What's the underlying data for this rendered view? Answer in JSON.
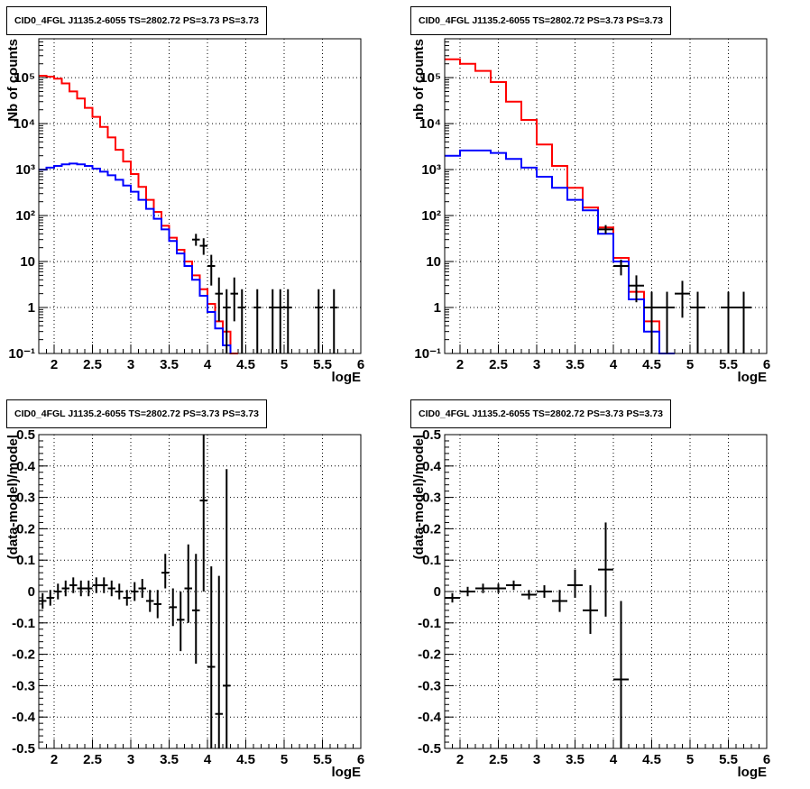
{
  "chart_data": [
    {
      "type": "line",
      "panel": "top-left",
      "title": "CID0_4FGL J1135.2-6055 TS=2802.72 PS=3.73 PS=3.73",
      "xlabel": "logE",
      "ylabel": "Nb of counts",
      "xlim": [
        1.8,
        6.0
      ],
      "ylim": [
        0.1,
        700000
      ],
      "y_scale": "log",
      "grid": true,
      "x_ticks": [
        "2",
        "2.5",
        "3",
        "3.5",
        "4",
        "4.5",
        "5",
        "5.5",
        "6"
      ],
      "y_ticks": [
        "10^-1",
        "1",
        "10",
        "10^2",
        "10^3",
        "10^4",
        "10^5"
      ],
      "bin_edges": [
        1.8,
        1.9,
        2.0,
        2.1,
        2.2,
        2.3,
        2.4,
        2.5,
        2.6,
        2.7,
        2.8,
        2.9,
        3.0,
        3.1,
        3.2,
        3.3,
        3.4,
        3.5,
        3.6,
        3.7,
        3.8,
        3.9,
        4.0,
        4.1,
        4.2,
        4.3,
        4.4,
        4.5,
        4.6,
        4.7,
        4.8,
        4.9,
        5.0,
        5.1,
        5.2,
        5.3,
        5.4,
        5.5,
        5.6,
        5.7,
        5.8,
        5.9,
        6.0
      ],
      "series": [
        {
          "color": "#ff0000",
          "values": [
            110000,
            105000,
            95000,
            75000,
            50000,
            35000,
            22000,
            14000,
            8500,
            5000,
            2700,
            1500,
            800,
            420,
            220,
            120,
            60,
            33,
            18,
            10,
            5,
            2.5,
            1.2,
            0.5,
            0.3,
            0.1,
            0,
            0,
            0,
            0,
            0,
            0,
            0,
            0,
            0,
            0,
            0,
            0,
            0,
            0,
            0,
            0
          ]
        },
        {
          "color": "#0000ff",
          "values": [
            1000,
            1100,
            1200,
            1300,
            1350,
            1300,
            1200,
            1050,
            900,
            750,
            600,
            450,
            330,
            220,
            140,
            85,
            50,
            28,
            15,
            8,
            4,
            1.8,
            0.8,
            0.35,
            0.15,
            0,
            0,
            0,
            0,
            0,
            0,
            0,
            0,
            0,
            0,
            0,
            0,
            0,
            0,
            0,
            0,
            0
          ]
        }
      ],
      "data_points": [
        {
          "x": 3.85,
          "y": 30,
          "xerr": 0.05,
          "ylo": 22,
          "yhi": 40
        },
        {
          "x": 3.95,
          "y": 22,
          "xerr": 0.05,
          "ylo": 14,
          "yhi": 32
        },
        {
          "x": 4.05,
          "y": 8,
          "xerr": 0.05,
          "ylo": 3,
          "yhi": 14
        },
        {
          "x": 4.15,
          "y": 2,
          "xerr": 0.05,
          "ylo": 0.5,
          "yhi": 4.5
        },
        {
          "x": 4.25,
          "y": 1,
          "xerr": 0.05,
          "ylo": 0.1,
          "yhi": 2.5
        },
        {
          "x": 4.35,
          "y": 2,
          "xerr": 0.05,
          "ylo": 0.5,
          "yhi": 4.5
        },
        {
          "x": 4.45,
          "y": 1,
          "xerr": 0.05,
          "ylo": 0.1,
          "yhi": 2.5
        },
        {
          "x": 4.65,
          "y": 1,
          "xerr": 0.05,
          "ylo": 0.1,
          "yhi": 2.5
        },
        {
          "x": 4.85,
          "y": 1,
          "xerr": 0.05,
          "ylo": 0.1,
          "yhi": 2.5
        },
        {
          "x": 4.95,
          "y": 1,
          "xerr": 0.05,
          "ylo": 0.1,
          "yhi": 2.5
        },
        {
          "x": 5.05,
          "y": 1,
          "xerr": 0.05,
          "ylo": 0.1,
          "yhi": 2.5
        },
        {
          "x": 5.45,
          "y": 1,
          "xerr": 0.05,
          "ylo": 0.1,
          "yhi": 2.5
        },
        {
          "x": 5.65,
          "y": 1,
          "xerr": 0.05,
          "ylo": 0.1,
          "yhi": 2.5
        }
      ]
    },
    {
      "type": "line",
      "panel": "top-right",
      "title": "CID0_4FGL J1135.2-6055 TS=2802.72 PS=3.73 PS=3.73",
      "xlabel": "logE",
      "ylabel": "nb of counts",
      "xlim": [
        1.8,
        6.0
      ],
      "ylim": [
        0.1,
        700000
      ],
      "y_scale": "log",
      "grid": true,
      "x_ticks": [
        "2",
        "2.5",
        "3",
        "3.5",
        "4",
        "4.5",
        "5",
        "5.5",
        "6"
      ],
      "y_ticks": [
        "10^-1",
        "1",
        "10",
        "10^2",
        "10^3",
        "10^4",
        "10^5"
      ],
      "bin_edges": [
        1.8,
        2.0,
        2.2,
        2.4,
        2.6,
        2.8,
        3.0,
        3.2,
        3.4,
        3.6,
        3.8,
        4.0,
        4.2,
        4.4,
        4.6,
        4.8,
        5.0,
        5.2,
        5.4,
        5.6,
        5.8,
        6.0
      ],
      "series": [
        {
          "color": "#ff0000",
          "values": [
            250000,
            200000,
            140000,
            80000,
            30000,
            12000,
            3500,
            1200,
            400,
            150,
            55,
            12,
            2.2,
            0.5,
            0.1,
            0,
            0,
            0,
            0,
            0,
            0
          ]
        },
        {
          "color": "#0000ff",
          "values": [
            2000,
            2600,
            2600,
            2300,
            1700,
            1100,
            700,
            400,
            220,
            130,
            40,
            10,
            1.5,
            0.3,
            0.1,
            0,
            0,
            0,
            0,
            0,
            0
          ]
        }
      ],
      "data_points": [
        {
          "x": 3.9,
          "y": 50,
          "xerr": 0.1,
          "ylo": 40,
          "yhi": 62
        },
        {
          "x": 4.1,
          "y": 8,
          "xerr": 0.1,
          "ylo": 5,
          "yhi": 11
        },
        {
          "x": 4.3,
          "y": 3,
          "xerr": 0.1,
          "ylo": 1.3,
          "yhi": 5
        },
        {
          "x": 4.5,
          "y": 1,
          "xerr": 0.1,
          "ylo": 0.1,
          "yhi": 2.2
        },
        {
          "x": 4.7,
          "y": 1,
          "xerr": 0.1,
          "ylo": 0.1,
          "yhi": 2.2
        },
        {
          "x": 4.9,
          "y": 2,
          "xerr": 0.1,
          "ylo": 0.6,
          "yhi": 3.8
        },
        {
          "x": 5.1,
          "y": 1,
          "xerr": 0.1,
          "ylo": 0.1,
          "yhi": 2.2
        },
        {
          "x": 5.5,
          "y": 1,
          "xerr": 0.1,
          "ylo": 0.1,
          "yhi": 2.2
        },
        {
          "x": 5.7,
          "y": 1,
          "xerr": 0.1,
          "ylo": 0.1,
          "yhi": 2.2
        }
      ]
    },
    {
      "type": "scatter",
      "panel": "bottom-left",
      "title": "CID0_4FGL J1135.2-6055 TS=2802.72 PS=3.73 PS=3.73",
      "xlabel": "logE",
      "ylabel": "(data-model)/model",
      "xlim": [
        1.8,
        6.0
      ],
      "ylim": [
        -0.5,
        0.5
      ],
      "grid": true,
      "x_ticks": [
        "2",
        "2.5",
        "3",
        "3.5",
        "4",
        "4.5",
        "5",
        "5.5",
        "6"
      ],
      "y_ticks": [
        "-0.5",
        "-0.4",
        "-0.3",
        "-0.2",
        "-0.1",
        "0",
        "0.1",
        "0.2",
        "0.3",
        "0.4",
        "0.5"
      ],
      "data_points": [
        {
          "x": 1.85,
          "y": -0.03,
          "xerr": 0.05,
          "ylo": -0.055,
          "yhi": -0.005
        },
        {
          "x": 1.95,
          "y": -0.02,
          "xerr": 0.05,
          "ylo": -0.045,
          "yhi": 0.005
        },
        {
          "x": 2.05,
          "y": 0,
          "xerr": 0.05,
          "ylo": -0.025,
          "yhi": 0.025
        },
        {
          "x": 2.15,
          "y": 0.01,
          "xerr": 0.05,
          "ylo": -0.015,
          "yhi": 0.035
        },
        {
          "x": 2.25,
          "y": 0.02,
          "xerr": 0.05,
          "ylo": -0.005,
          "yhi": 0.045
        },
        {
          "x": 2.35,
          "y": 0.01,
          "xerr": 0.05,
          "ylo": -0.015,
          "yhi": 0.035
        },
        {
          "x": 2.45,
          "y": 0.01,
          "xerr": 0.05,
          "ylo": -0.015,
          "yhi": 0.035
        },
        {
          "x": 2.55,
          "y": 0.02,
          "xerr": 0.05,
          "ylo": -0.005,
          "yhi": 0.045
        },
        {
          "x": 2.65,
          "y": 0.02,
          "xerr": 0.05,
          "ylo": -0.005,
          "yhi": 0.045
        },
        {
          "x": 2.75,
          "y": 0.01,
          "xerr": 0.05,
          "ylo": -0.015,
          "yhi": 0.035
        },
        {
          "x": 2.85,
          "y": 0,
          "xerr": 0.05,
          "ylo": -0.025,
          "yhi": 0.025
        },
        {
          "x": 2.95,
          "y": -0.02,
          "xerr": 0.05,
          "ylo": -0.045,
          "yhi": 0.005
        },
        {
          "x": 3.05,
          "y": 0,
          "xerr": 0.05,
          "ylo": -0.03,
          "yhi": 0.03
        },
        {
          "x": 3.15,
          "y": 0.01,
          "xerr": 0.05,
          "ylo": -0.02,
          "yhi": 0.04
        },
        {
          "x": 3.25,
          "y": -0.03,
          "xerr": 0.05,
          "ylo": -0.065,
          "yhi": 0.005
        },
        {
          "x": 3.35,
          "y": -0.04,
          "xerr": 0.05,
          "ylo": -0.085,
          "yhi": 0.005
        },
        {
          "x": 3.45,
          "y": 0.06,
          "xerr": 0.05,
          "ylo": 0.01,
          "yhi": 0.12
        },
        {
          "x": 3.55,
          "y": -0.05,
          "xerr": 0.05,
          "ylo": -0.11,
          "yhi": 0.01
        },
        {
          "x": 3.65,
          "y": -0.09,
          "xerr": 0.05,
          "ylo": -0.19,
          "yhi": 0
        },
        {
          "x": 3.75,
          "y": 0.01,
          "xerr": 0.05,
          "ylo": -0.1,
          "yhi": 0.15
        },
        {
          "x": 3.85,
          "y": -0.06,
          "xerr": 0.05,
          "ylo": -0.23,
          "yhi": 0.12
        },
        {
          "x": 3.95,
          "y": 0.29,
          "xerr": 0.05,
          "ylo": 0,
          "yhi": 0.5
        },
        {
          "x": 4.05,
          "y": -0.24,
          "xerr": 0.05,
          "ylo": -0.5,
          "yhi": 0.08
        },
        {
          "x": 4.15,
          "y": -0.39,
          "xerr": 0.05,
          "ylo": -0.5,
          "yhi": 0.05
        },
        {
          "x": 4.25,
          "y": -0.3,
          "xerr": 0.05,
          "ylo": -0.5,
          "yhi": 0.39
        }
      ]
    },
    {
      "type": "scatter",
      "panel": "bottom-right",
      "title": "CID0_4FGL J1135.2-6055 TS=2802.72 PS=3.73 PS=3.73",
      "xlabel": "logE",
      "ylabel": "(data-model)/model",
      "xlim": [
        1.8,
        6.0
      ],
      "ylim": [
        -0.5,
        0.5
      ],
      "grid": true,
      "x_ticks": [
        "2",
        "2.5",
        "3",
        "3.5",
        "4",
        "4.5",
        "5",
        "5.5",
        "6"
      ],
      "y_ticks": [
        "-0.5",
        "-0.4",
        "-0.3",
        "-0.2",
        "-0.1",
        "0",
        "0.1",
        "0.2",
        "0.3",
        "0.4",
        "0.5"
      ],
      "data_points": [
        {
          "x": 1.9,
          "y": -0.02,
          "xerr": 0.1,
          "ylo": -0.035,
          "yhi": -0.005
        },
        {
          "x": 2.1,
          "y": 0,
          "xerr": 0.1,
          "ylo": -0.015,
          "yhi": 0.015
        },
        {
          "x": 2.3,
          "y": 0.01,
          "xerr": 0.1,
          "ylo": -0.005,
          "yhi": 0.025
        },
        {
          "x": 2.5,
          "y": 0.01,
          "xerr": 0.1,
          "ylo": -0.005,
          "yhi": 0.025
        },
        {
          "x": 2.7,
          "y": 0.02,
          "xerr": 0.1,
          "ylo": 0.005,
          "yhi": 0.035
        },
        {
          "x": 2.9,
          "y": -0.01,
          "xerr": 0.1,
          "ylo": -0.025,
          "yhi": 0.005
        },
        {
          "x": 3.1,
          "y": 0,
          "xerr": 0.1,
          "ylo": -0.02,
          "yhi": 0.02
        },
        {
          "x": 3.3,
          "y": -0.03,
          "xerr": 0.1,
          "ylo": -0.065,
          "yhi": 0.005
        },
        {
          "x": 3.5,
          "y": 0.02,
          "xerr": 0.1,
          "ylo": -0.02,
          "yhi": 0.07
        },
        {
          "x": 3.7,
          "y": -0.06,
          "xerr": 0.1,
          "ylo": -0.135,
          "yhi": 0.02
        },
        {
          "x": 3.9,
          "y": 0.07,
          "xerr": 0.1,
          "ylo": -0.08,
          "yhi": 0.22
        },
        {
          "x": 4.1,
          "y": -0.28,
          "xerr": 0.1,
          "ylo": -0.5,
          "yhi": -0.03
        }
      ]
    }
  ]
}
